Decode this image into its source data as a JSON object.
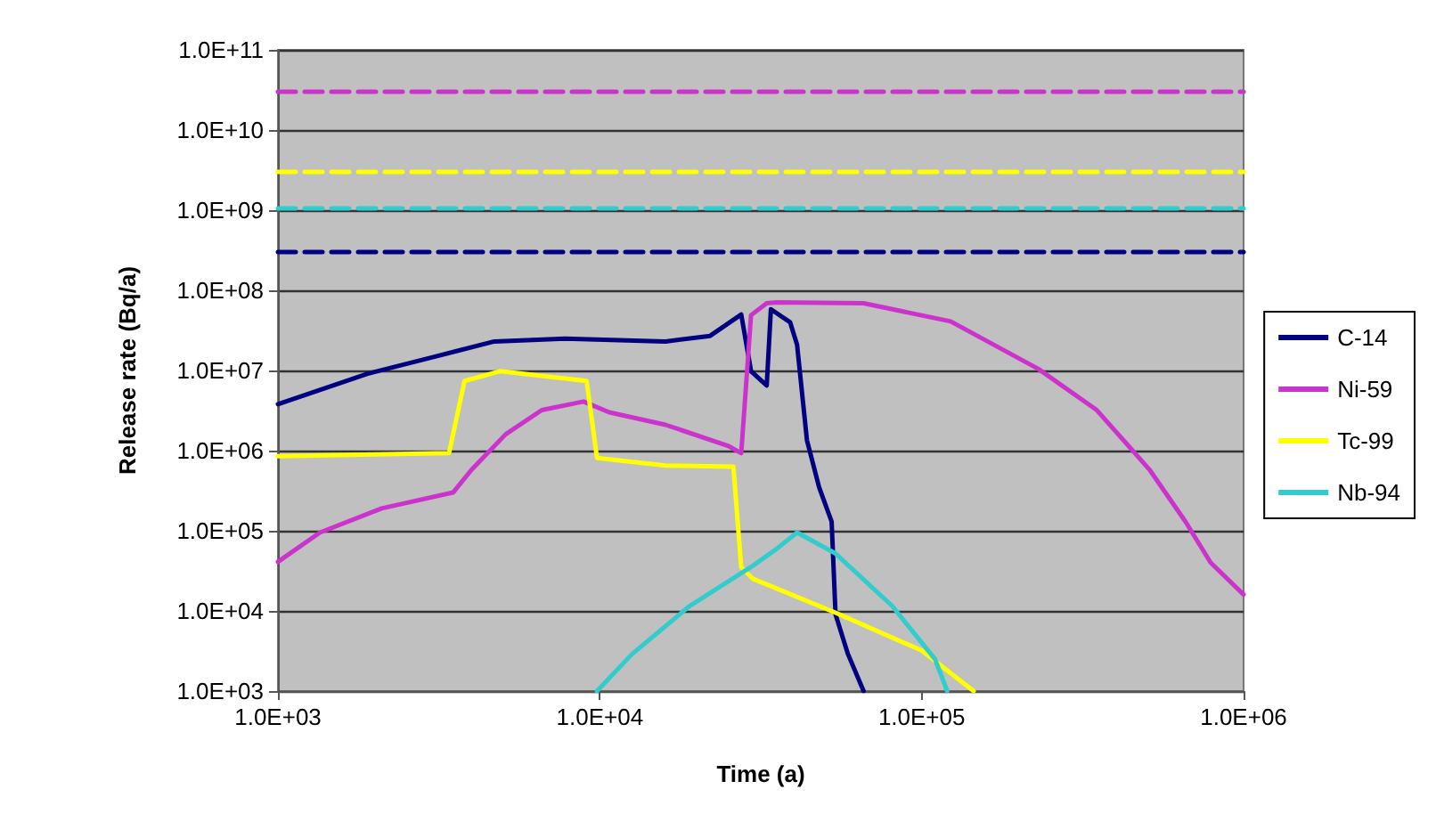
{
  "chart_data": {
    "type": "line",
    "xlabel": "Time (a)",
    "ylabel": "Release rate (Bq/a)",
    "log": "xy",
    "grid": "y",
    "legend": "right",
    "marker": "none",
    "xlim": [
      1000,
      1000000
    ],
    "ylim": [
      1000,
      100000000000
    ],
    "xticks": [
      {
        "value": 1000,
        "label": "1.0E+03"
      },
      {
        "value": 10000,
        "label": "1.0E+04"
      },
      {
        "value": 100000,
        "label": "1.0E+05"
      },
      {
        "value": 1000000,
        "label": "1.0E+06"
      }
    ],
    "yticks": [
      {
        "value": 1000,
        "label": "1.0E+03"
      },
      {
        "value": 10000,
        "label": "1.0E+04"
      },
      {
        "value": 100000,
        "label": "1.0E+05"
      },
      {
        "value": 1000000,
        "label": "1.0E+06"
      },
      {
        "value": 10000000,
        "label": "1.0E+07"
      },
      {
        "value": 100000000,
        "label": "1.0E+08"
      },
      {
        "value": 1000000000,
        "label": "1.0E+09"
      },
      {
        "value": 10000000000,
        "label": "1.0E+10"
      },
      {
        "value": 100000000000,
        "label": "1.0E+11"
      }
    ],
    "series": [
      {
        "name": "C-14",
        "color": "#000080",
        "x": [
          1000,
          1900,
          3100,
          4700,
          7800,
          16000,
          22000,
          27500,
          29500,
          33000,
          34000,
          39000,
          41000,
          44000,
          48000,
          52500,
          54000,
          59000,
          66000
        ],
        "values": [
          3800000,
          9100000,
          15000000,
          23000000,
          25000000,
          23000000,
          27000000,
          50000000,
          9800000,
          6500000,
          58000000,
          40000000,
          21000000,
          1350000,
          350000,
          130000,
          9000,
          2900,
          1000
        ]
      },
      {
        "name": "Ni-59",
        "color": "#cc33cc",
        "x": [
          1000,
          1350,
          2100,
          3500,
          4000,
          5100,
          6600,
          8900,
          10700,
          16000,
          25000,
          27500,
          29500,
          33000,
          35500,
          66000,
          123000,
          230000,
          350000,
          510000,
          660000,
          790000,
          1000000
        ],
        "values": [
          41000,
          95000,
          190000,
          300000,
          580000,
          1600000,
          3200000,
          4100000,
          3000000,
          2100000,
          1150000,
          930000,
          49000000,
          69000000,
          71000000,
          69000000,
          41000000,
          10500000,
          3200000,
          580000,
          130000,
          40000,
          16000
        ]
      },
      {
        "name": "Tc-99",
        "color": "#ffff00",
        "x": [
          1000,
          3400,
          3800,
          4900,
          9100,
          9800,
          16000,
          26000,
          27500,
          30000,
          54000,
          100000,
          145000
        ],
        "values": [
          850000,
          930000,
          7400000,
          9800000,
          7400000,
          810000,
          650000,
          630000,
          35000,
          25000,
          9500,
          3200,
          1000
        ]
      },
      {
        "name": "Nb-94",
        "color": "#33cccc",
        "x": [
          9800,
          12600,
          19000,
          30000,
          35500,
          41000,
          54000,
          81000,
          110000,
          120000
        ],
        "values": [
          1000,
          2900,
          11500,
          37000,
          60000,
          95000,
          52000,
          11500,
          2500,
          1000
        ]
      },
      {
        "color": "#cc33cc",
        "line_style": "dashed",
        "x": [
          1000,
          1000000
        ],
        "values": [
          30000000000,
          30000000000
        ]
      },
      {
        "color": "#ffff00",
        "line_style": "dashed",
        "x": [
          1000,
          1000000
        ],
        "values": [
          3000000000,
          3000000000
        ]
      },
      {
        "color": "#33cccc",
        "line_style": "dashed",
        "x": [
          1000,
          1000000
        ],
        "values": [
          1050000000,
          1050000000
        ]
      },
      {
        "color": "#000080",
        "line_style": "dashed",
        "x": [
          1000,
          1000000
        ],
        "values": [
          300000000,
          300000000
        ]
      }
    ]
  }
}
